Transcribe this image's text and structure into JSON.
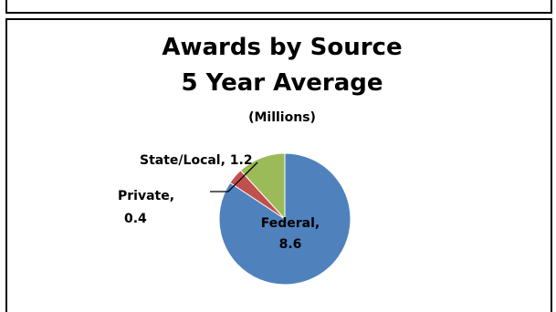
{
  "chart_data": {
    "type": "pie",
    "title": "Awards by Source",
    "subtitle": "5 Year Average",
    "unit_note": "(Millions)",
    "start_angle_deg": 0,
    "direction": "clockwise",
    "slices": [
      {
        "category": "Federal",
        "value": 8.6,
        "label_line1": "Federal,",
        "label_line2": "8.6",
        "color": "#4f81bd"
      },
      {
        "category": "Private",
        "value": 0.4,
        "label_line1": "Private,",
        "label_line2": "0.4",
        "color": "#c0504d"
      },
      {
        "category": "State/Local",
        "value": 1.2,
        "label_line1": "State/Local, 1.2",
        "label_line2": "",
        "color": "#9bbb59"
      }
    ],
    "legend": "none"
  }
}
